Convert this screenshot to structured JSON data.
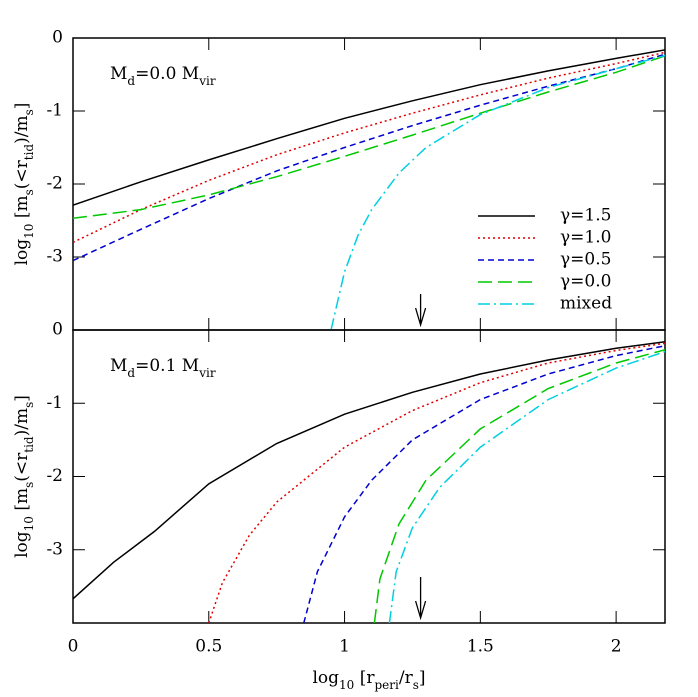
{
  "chart_data": [
    {
      "type": "line",
      "ylabel": [
        {
          "text": "log"
        },
        {
          "text": "10",
          "sub": true
        },
        {
          "text": " [m"
        },
        {
          "text": "s",
          "sub": true
        },
        {
          "text": "(<r"
        },
        {
          "text": "tid",
          "sub": true
        },
        {
          "text": ")/m"
        },
        {
          "text": "s",
          "sub": true
        },
        {
          "text": "]"
        }
      ],
      "annotation": [
        {
          "text": "M"
        },
        {
          "text": "d",
          "sub": true
        },
        {
          "text": "=0.0  M"
        },
        {
          "text": "vir",
          "sub": true
        }
      ],
      "xlim": [
        0,
        2.18
      ],
      "ylim": [
        -4,
        0
      ],
      "yticks": [
        0,
        -1,
        -2,
        -3
      ],
      "arrow_x": 1.28,
      "legend": "lower right",
      "series": [
        {
          "name": "γ=1.5",
          "color": "#000000",
          "x": [
            0,
            0.25,
            0.5,
            0.75,
            1,
            1.25,
            1.5,
            1.75,
            2,
            2.2
          ],
          "values": [
            -2.29,
            -1.97,
            -1.67,
            -1.38,
            -1.1,
            -0.86,
            -0.64,
            -0.45,
            -0.28,
            -0.15
          ]
        },
        {
          "name": "γ=1.0",
          "color": "#e00000",
          "x": [
            0,
            0.25,
            0.5,
            0.75,
            1,
            1.25,
            1.5,
            1.75,
            2,
            2.2
          ],
          "values": [
            -2.8,
            -2.35,
            -1.95,
            -1.6,
            -1.3,
            -1.03,
            -0.78,
            -0.55,
            -0.35,
            -0.18
          ]
        },
        {
          "name": "γ=0.5",
          "color": "#0000d0",
          "x": [
            0,
            0.25,
            0.5,
            0.75,
            1,
            1.25,
            1.5,
            1.75,
            2,
            2.2
          ],
          "values": [
            -3.05,
            -2.62,
            -2.2,
            -1.82,
            -1.5,
            -1.2,
            -0.92,
            -0.66,
            -0.42,
            -0.2
          ]
        },
        {
          "name": "γ=0.0",
          "color": "#00c800",
          "x": [
            0,
            0.25,
            0.5,
            0.75,
            1,
            1.25,
            1.5,
            1.75,
            2,
            2.2
          ],
          "values": [
            -2.47,
            -2.35,
            -2.15,
            -1.9,
            -1.62,
            -1.33,
            -1.03,
            -0.74,
            -0.47,
            -0.22
          ]
        },
        {
          "name": "mixed",
          "color": "#00d0e0",
          "x": [
            0.95,
            1.0,
            1.05,
            1.1,
            1.2,
            1.3,
            1.5,
            1.75,
            2,
            2.2
          ],
          "values": [
            -4,
            -3.2,
            -2.7,
            -2.35,
            -1.85,
            -1.5,
            -1.05,
            -0.68,
            -0.42,
            -0.22
          ]
        }
      ]
    },
    {
      "type": "line",
      "ylabel": [
        {
          "text": "log"
        },
        {
          "text": "10",
          "sub": true
        },
        {
          "text": " [m"
        },
        {
          "text": "s",
          "sub": true
        },
        {
          "text": "(<r"
        },
        {
          "text": "tid",
          "sub": true
        },
        {
          "text": ")/m"
        },
        {
          "text": "s",
          "sub": true
        },
        {
          "text": "]"
        }
      ],
      "xlabel": [
        {
          "text": "log"
        },
        {
          "text": "10",
          "sub": true
        },
        {
          "text": " [r"
        },
        {
          "text": "peri",
          "sub": true
        },
        {
          "text": "/r"
        },
        {
          "text": "s",
          "sub": true
        },
        {
          "text": "]"
        }
      ],
      "annotation": [
        {
          "text": "M"
        },
        {
          "text": "d",
          "sub": true
        },
        {
          "text": "=0.1  M"
        },
        {
          "text": "vir",
          "sub": true
        }
      ],
      "xlim": [
        0,
        2.18
      ],
      "ylim": [
        -4,
        0
      ],
      "xticks": [
        0,
        0.5,
        1,
        1.5,
        2
      ],
      "yticks": [
        0,
        -1,
        -2,
        -3
      ],
      "arrow_x": 1.28,
      "series": [
        {
          "color": "#000000",
          "x": [
            0,
            0.15,
            0.3,
            0.5,
            0.75,
            1,
            1.25,
            1.5,
            1.75,
            2,
            2.2
          ],
          "values": [
            -3.67,
            -3.17,
            -2.75,
            -2.1,
            -1.55,
            -1.15,
            -0.85,
            -0.6,
            -0.41,
            -0.25,
            -0.15
          ]
        },
        {
          "color": "#e00000",
          "x": [
            0.5,
            0.55,
            0.65,
            0.75,
            1,
            1.25,
            1.5,
            1.75,
            2,
            2.2
          ],
          "values": [
            -4,
            -3.45,
            -2.8,
            -2.35,
            -1.6,
            -1.1,
            -0.72,
            -0.45,
            -0.28,
            -0.17
          ]
        },
        {
          "color": "#0000d0",
          "x": [
            0.85,
            0.9,
            1.0,
            1.1,
            1.25,
            1.5,
            1.75,
            2,
            2.2
          ],
          "values": [
            -4,
            -3.3,
            -2.55,
            -2.05,
            -1.5,
            -0.95,
            -0.6,
            -0.35,
            -0.2
          ]
        },
        {
          "color": "#00c800",
          "x": [
            1.11,
            1.13,
            1.2,
            1.3,
            1.5,
            1.75,
            2,
            2.2
          ],
          "values": [
            -4,
            -3.4,
            -2.65,
            -2.05,
            -1.35,
            -0.8,
            -0.45,
            -0.25
          ]
        },
        {
          "color": "#00d0e0",
          "x": [
            1.165,
            1.19,
            1.25,
            1.35,
            1.5,
            1.75,
            2,
            2.2
          ],
          "values": [
            -4,
            -3.3,
            -2.7,
            -2.15,
            -1.6,
            -0.95,
            -0.52,
            -0.27
          ]
        }
      ]
    }
  ]
}
